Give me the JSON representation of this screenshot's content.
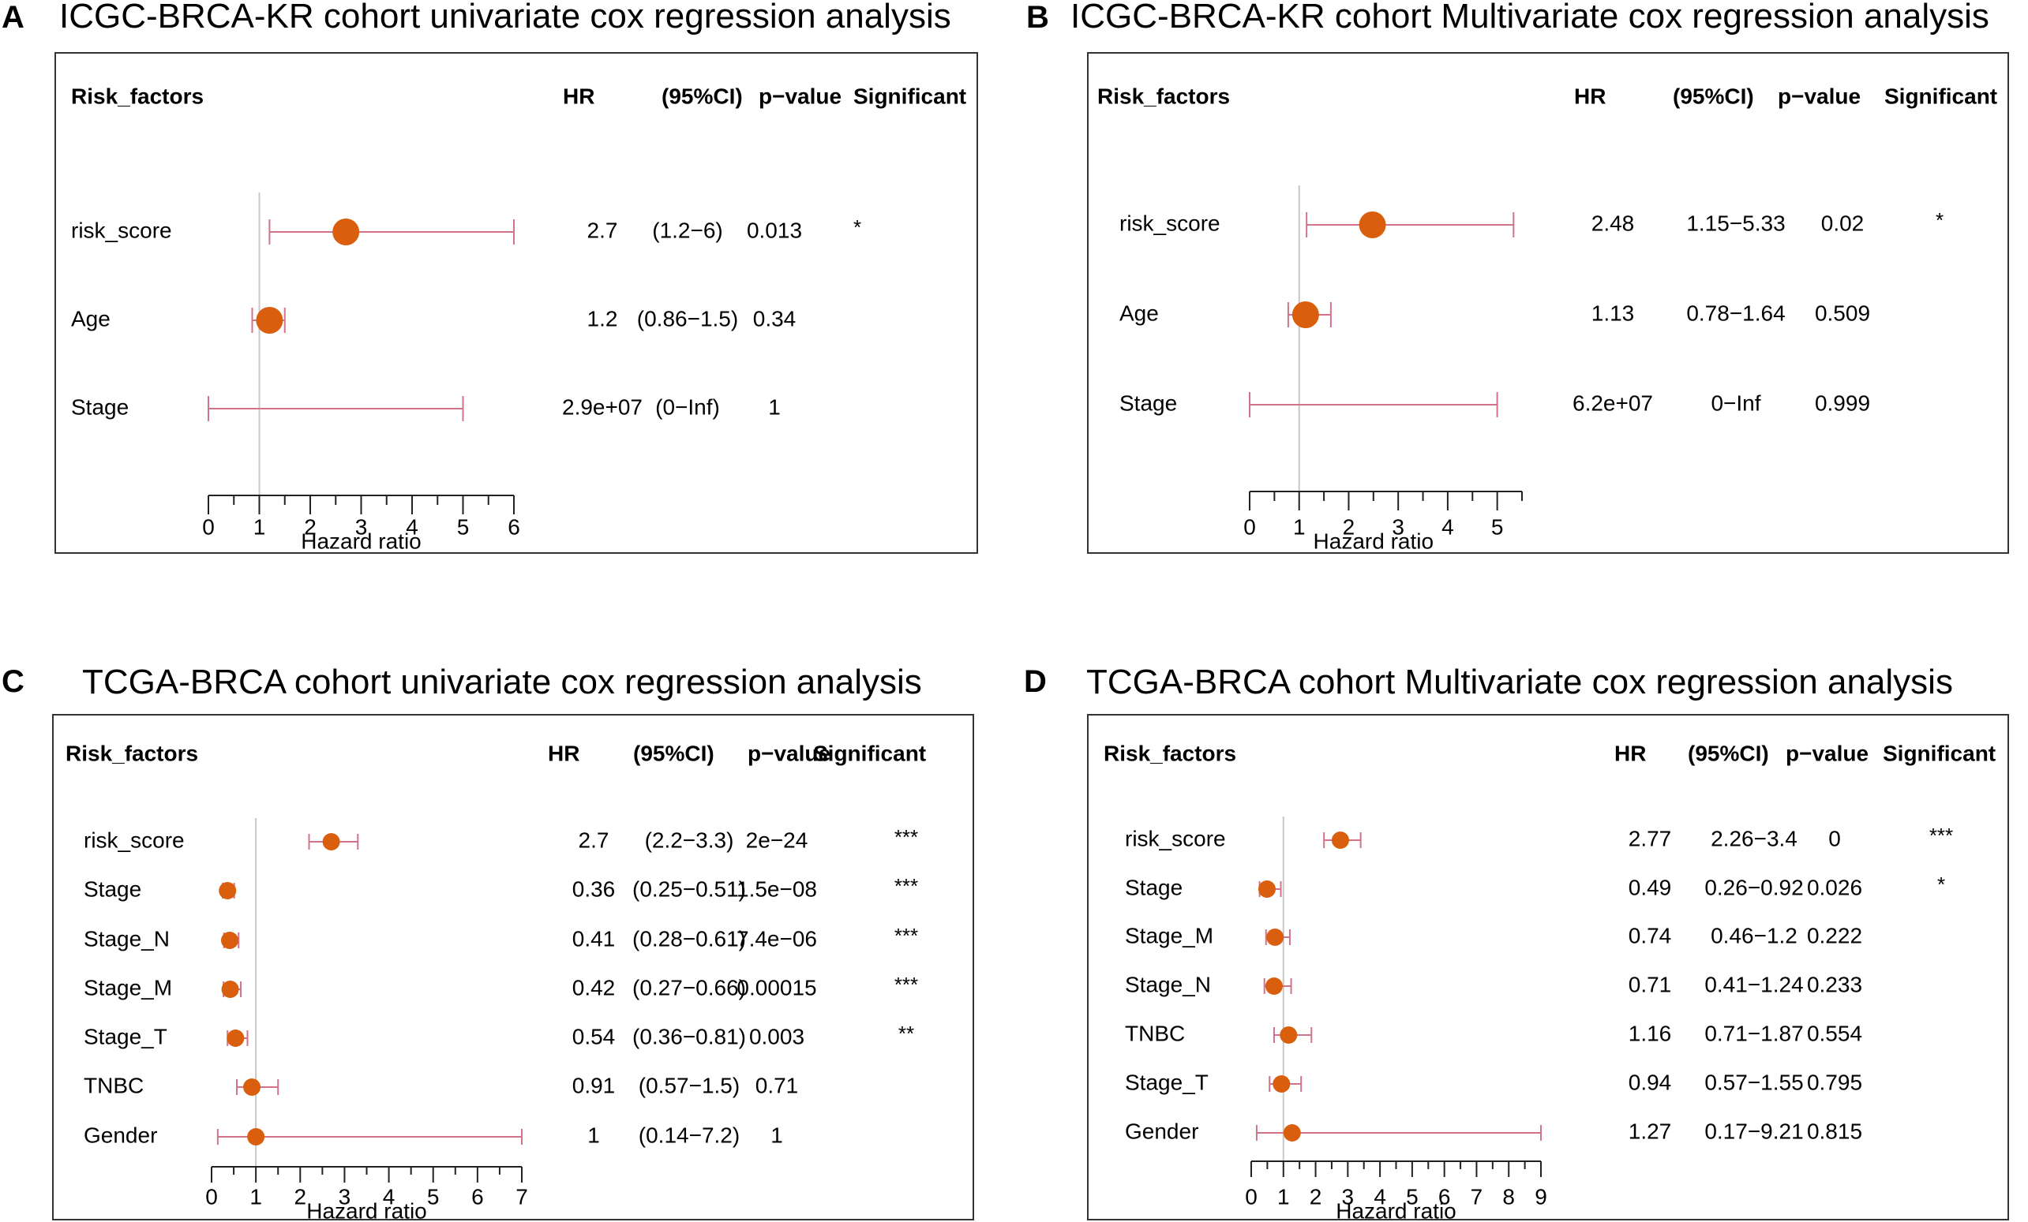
{
  "theme": {
    "point_color": "#D95F0E",
    "ci_color": "#D2738A",
    "refline_color": "#C8C8C8",
    "axis_color": "#222222"
  },
  "chart_data": [
    {
      "type": "forest",
      "panel_label": "A",
      "title": "ICGC-BRCA-KR cohort univariate cox regression analysis",
      "headers": {
        "factor": "Risk_factors",
        "hr": "HR",
        "ci": "(95%CI)",
        "p": "p−value",
        "sig": "Significant"
      },
      "xlabel": "Hazard ratio",
      "xlim": [
        0,
        6
      ],
      "ticks": [
        0,
        1,
        2,
        3,
        4,
        5,
        6
      ],
      "rows": [
        {
          "factor": "risk_score",
          "hr": 2.7,
          "lo": 1.2,
          "hi": 6,
          "hr_text": "2.7",
          "ci_text": "(1.2−6)",
          "p_text": "0.013",
          "sig": "*"
        },
        {
          "factor": "Age",
          "hr": 1.2,
          "lo": 0.86,
          "hi": 1.5,
          "hr_text": "1.2",
          "ci_text": "(0.86−1.5)",
          "p_text": "0.34",
          "sig": ""
        },
        {
          "factor": "Stage",
          "hr": null,
          "lo": 0,
          "hi": 5,
          "hr_text": "2.9e+07",
          "ci_text": "(0−Inf)",
          "p_text": "1",
          "sig": ""
        }
      ]
    },
    {
      "type": "forest",
      "panel_label": "B",
      "title": "ICGC-BRCA-KR cohort Multivariate cox regression analysis",
      "headers": {
        "factor": "Risk_factors",
        "hr": "HR",
        "ci": "(95%CI)",
        "p": "p−value",
        "sig": "Significant"
      },
      "xlabel": "Hazard ratio",
      "xlim": [
        0,
        5.5
      ],
      "ticks": [
        0,
        1,
        2,
        3,
        4,
        5
      ],
      "rows": [
        {
          "factor": "risk_score",
          "hr": 2.48,
          "lo": 1.15,
          "hi": 5.33,
          "hr_text": "2.48",
          "ci_text": "1.15−5.33",
          "p_text": "0.02",
          "sig": "*"
        },
        {
          "factor": "Age",
          "hr": 1.13,
          "lo": 0.78,
          "hi": 1.64,
          "hr_text": "1.13",
          "ci_text": "0.78−1.64",
          "p_text": "0.509",
          "sig": ""
        },
        {
          "factor": "Stage",
          "hr": null,
          "lo": 0,
          "hi": 5,
          "hr_text": "6.2e+07",
          "ci_text": "0−Inf",
          "p_text": "0.999",
          "sig": ""
        }
      ]
    },
    {
      "type": "forest",
      "panel_label": "C",
      "title": "TCGA-BRCA cohort univariate cox regression analysis",
      "headers": {
        "factor": "Risk_factors",
        "hr": "HR",
        "ci": "(95%CI)",
        "p": "p−value",
        "sig": "Significant"
      },
      "xlabel": "Hazard ratio",
      "xlim": [
        0,
        7
      ],
      "ticks": [
        0,
        1,
        2,
        3,
        4,
        5,
        6,
        7
      ],
      "rows": [
        {
          "factor": "risk_score",
          "hr": 2.7,
          "lo": 2.2,
          "hi": 3.3,
          "hr_text": "2.7",
          "ci_text": "(2.2−3.3)",
          "p_text": "2e−24",
          "sig": "***"
        },
        {
          "factor": "Stage",
          "hr": 0.36,
          "lo": 0.25,
          "hi": 0.51,
          "hr_text": "0.36",
          "ci_text": "(0.25−0.51)",
          "p_text": "1.5e−08",
          "sig": "***"
        },
        {
          "factor": "Stage_N",
          "hr": 0.41,
          "lo": 0.28,
          "hi": 0.61,
          "hr_text": "0.41",
          "ci_text": "(0.28−0.61)",
          "p_text": "7.4e−06",
          "sig": "***"
        },
        {
          "factor": "Stage_M",
          "hr": 0.42,
          "lo": 0.27,
          "hi": 0.66,
          "hr_text": "0.42",
          "ci_text": "(0.27−0.66)",
          "p_text": "0.00015",
          "sig": "***"
        },
        {
          "factor": "Stage_T",
          "hr": 0.54,
          "lo": 0.36,
          "hi": 0.81,
          "hr_text": "0.54",
          "ci_text": "(0.36−0.81)",
          "p_text": "0.003",
          "sig": "**"
        },
        {
          "factor": "TNBC",
          "hr": 0.91,
          "lo": 0.57,
          "hi": 1.5,
          "hr_text": "0.91",
          "ci_text": "(0.57−1.5)",
          "p_text": "0.71",
          "sig": ""
        },
        {
          "factor": "Gender",
          "hr": 1,
          "lo": 0.14,
          "hi": 7.2,
          "hr_text": "1",
          "ci_text": "(0.14−7.2)",
          "p_text": "1",
          "sig": ""
        }
      ]
    },
    {
      "type": "forest",
      "panel_label": "D",
      "title": "TCGA-BRCA cohort Multivariate cox regression analysis",
      "headers": {
        "factor": "Risk_factors",
        "hr": "HR",
        "ci": "(95%CI)",
        "p": "p−value",
        "sig": "Significant"
      },
      "xlabel": "Hazard ratio",
      "xlim": [
        0,
        9
      ],
      "ticks": [
        0,
        1,
        2,
        3,
        4,
        5,
        6,
        7,
        8,
        9
      ],
      "rows": [
        {
          "factor": "risk_score",
          "hr": 2.77,
          "lo": 2.26,
          "hi": 3.4,
          "hr_text": "2.77",
          "ci_text": "2.26−3.4",
          "p_text": "0",
          "sig": "***"
        },
        {
          "factor": "Stage",
          "hr": 0.49,
          "lo": 0.26,
          "hi": 0.92,
          "hr_text": "0.49",
          "ci_text": "0.26−0.92",
          "p_text": "0.026",
          "sig": "*"
        },
        {
          "factor": "Stage_M",
          "hr": 0.74,
          "lo": 0.46,
          "hi": 1.2,
          "hr_text": "0.74",
          "ci_text": "0.46−1.2",
          "p_text": "0.222",
          "sig": ""
        },
        {
          "factor": "Stage_N",
          "hr": 0.71,
          "lo": 0.41,
          "hi": 1.24,
          "hr_text": "0.71",
          "ci_text": "0.41−1.24",
          "p_text": "0.233",
          "sig": ""
        },
        {
          "factor": "TNBC",
          "hr": 1.16,
          "lo": 0.71,
          "hi": 1.87,
          "hr_text": "1.16",
          "ci_text": "0.71−1.87",
          "p_text": "0.554",
          "sig": ""
        },
        {
          "factor": "Stage_T",
          "hr": 0.94,
          "lo": 0.57,
          "hi": 1.55,
          "hr_text": "0.94",
          "ci_text": "0.57−1.55",
          "p_text": "0.795",
          "sig": ""
        },
        {
          "factor": "Gender",
          "hr": 1.27,
          "lo": 0.17,
          "hi": 9.21,
          "hr_text": "1.27",
          "ci_text": "0.17−9.21",
          "p_text": "0.815",
          "sig": ""
        }
      ]
    }
  ]
}
